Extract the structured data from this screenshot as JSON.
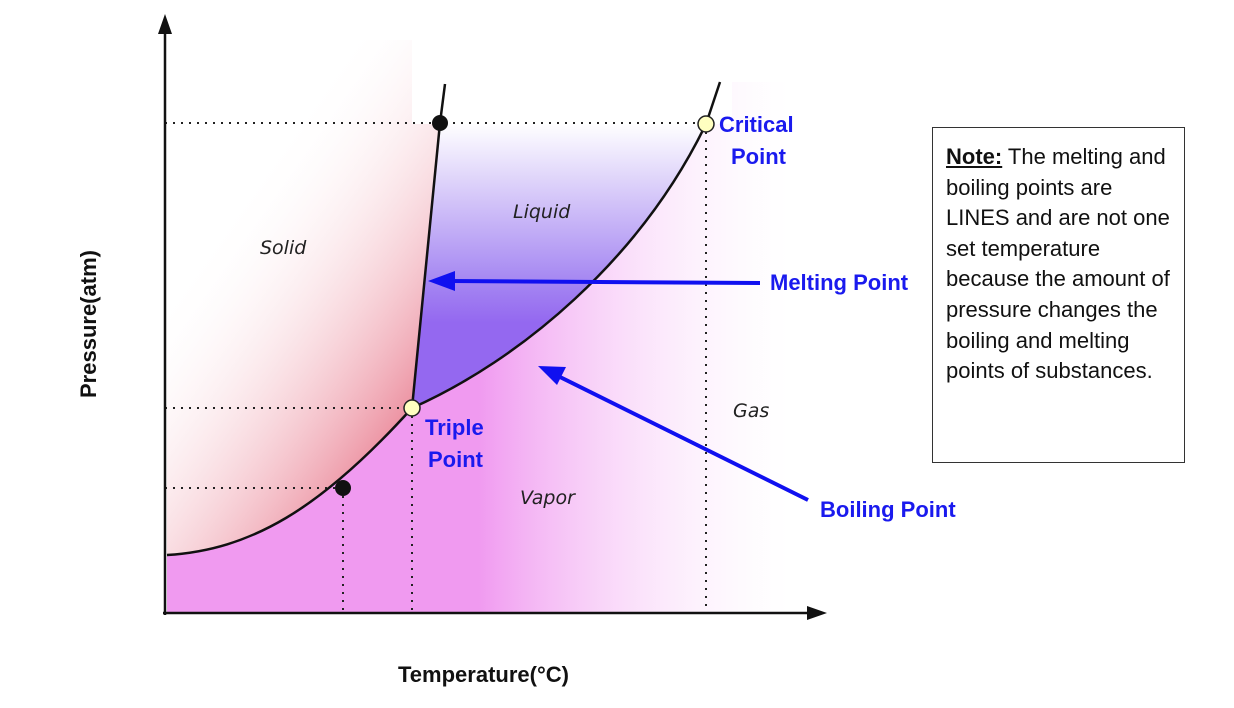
{
  "axes": {
    "x_label": "Temperature(°C)",
    "y_label": "Pressure(atm)"
  },
  "regions": {
    "solid": "Solid",
    "liquid": "Liquid",
    "gas": "Gas",
    "vapor": "Vapor"
  },
  "points": {
    "triple_line1": "Triple",
    "triple_line2": "Point",
    "critical_line1": "Critical",
    "critical_line2": "Point"
  },
  "callouts": {
    "melting": "Melting Point",
    "boiling": "Boiling Point"
  },
  "note": {
    "heading": "Note:",
    "body": " The melting and boiling points are LINES and are not one set temperature because the amount of pressure changes the boiling and melting points of substances."
  },
  "colors": {
    "solid": "#e0506a",
    "liquid": "#9468f0",
    "vapor": "#f09af0",
    "label_blue": "#1a1aee",
    "point_fill": "#ffffc0"
  }
}
